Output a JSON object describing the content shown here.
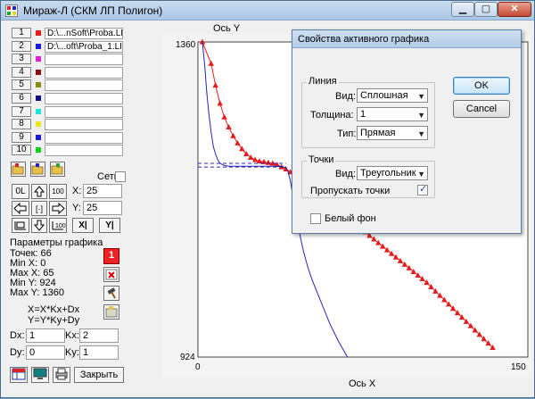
{
  "window": {
    "title": "Мираж-Л (СКМ ЛП Полигон)",
    "controls": {
      "minimize": "▁",
      "maximize": "▢",
      "close": "✕"
    }
  },
  "file_slots": [
    {
      "num": "1",
      "color": "#e81a1a",
      "file": "D:\\...nSoft\\Proba.LIN"
    },
    {
      "num": "2",
      "color": "#1a1ad4",
      "file": "D:\\...oft\\Proba_1.LIN"
    },
    {
      "num": "3",
      "color": "#e020e0",
      "file": ""
    },
    {
      "num": "4",
      "color": "#8a1010",
      "file": ""
    },
    {
      "num": "5",
      "color": "#8a8a10",
      "file": ""
    },
    {
      "num": "6",
      "color": "#10108a",
      "file": ""
    },
    {
      "num": "7",
      "color": "#20e0e0",
      "file": ""
    },
    {
      "num": "8",
      "color": "#e8e820",
      "file": ""
    },
    {
      "num": "9",
      "color": "#1a1ad4",
      "file": ""
    },
    {
      "num": "10",
      "color": "#18d018",
      "file": ""
    }
  ],
  "grid": {
    "label": "Сетка",
    "checked": false
  },
  "nav": {
    "zoom_reset_label": "0L",
    "zoom_100_label": "100",
    "center_label": "[·]",
    "x_label": "X:",
    "x_value": "25",
    "y_label": "Y:",
    "y_value": "25",
    "axis_x_btn": "X|",
    "axis_y_btn": "Y|"
  },
  "params": {
    "title": "Параметры графика",
    "points": "Точек: 66",
    "min_x": "Min X: 0",
    "max_x": "Max X: 65",
    "min_y": "Min Y: 924",
    "max_y": "Max Y: 1360",
    "active_num": "1",
    "formula_x": "X=X*Kx+Dx",
    "formula_y": "Y=Y*Ky+Dy",
    "dx_label": "Dx:",
    "dx_value": "1",
    "dy_label": "Dy:",
    "dy_value": "0",
    "kx_label": "Kx:",
    "kx_value": "2",
    "ky_label": "Ky:",
    "ky_value": "1"
  },
  "bottom": {
    "close_label": "Закрыть"
  },
  "chart": {
    "y_axis_label": "Ось Y",
    "x_axis_label": "Ось X",
    "y_top_tick": "1360",
    "y_bottom_tick": "924",
    "x_left_tick": "0",
    "x_right_tick": "150"
  },
  "chart_data": {
    "type": "line",
    "xlim": [
      0,
      150
    ],
    "ylim": [
      924,
      1360
    ],
    "xlabel": "Ось X",
    "ylabel": "Ось Y",
    "series": [
      {
        "color": "#e81a1a",
        "marker": "triangle",
        "x": [
          2,
          6,
          8,
          10,
          12,
          14,
          16,
          18,
          20,
          22,
          24,
          26,
          28,
          30,
          32,
          34,
          36,
          38,
          40,
          42,
          44,
          46,
          48,
          50,
          52,
          54,
          56,
          58,
          60,
          62,
          64,
          66,
          68,
          70,
          72,
          74,
          76,
          78,
          80,
          82,
          84,
          86,
          88,
          90,
          92,
          94,
          96,
          98,
          100,
          102,
          104,
          106,
          108,
          110,
          112,
          114,
          116,
          118,
          120,
          122,
          124,
          126,
          128,
          130,
          132,
          134
        ],
        "y": [
          1360,
          1330,
          1300,
          1275,
          1256,
          1242,
          1230,
          1220,
          1212,
          1205,
          1200,
          1197,
          1195,
          1194,
          1193,
          1192,
          1190,
          1187,
          1184,
          1180,
          1176,
          1172,
          1167,
          1162,
          1157,
          1152,
          1147,
          1142,
          1137,
          1132,
          1127,
          1122,
          1117,
          1112,
          1107,
          1102,
          1097,
          1092,
          1087,
          1082,
          1077,
          1072,
          1067,
          1062,
          1057,
          1052,
          1047,
          1042,
          1037,
          1032,
          1027,
          1021,
          1015,
          1009,
          1003,
          997,
          991,
          985,
          979,
          973,
          967,
          961,
          955,
          949,
          943,
          937
        ]
      },
      {
        "color": "#2424b8",
        "marker": "none",
        "x": [
          2,
          3,
          4,
          5,
          6,
          7,
          8,
          9,
          10,
          12,
          14,
          16,
          20,
          25,
          30,
          35,
          38,
          40,
          41,
          42,
          43,
          44,
          46,
          48,
          50,
          52,
          56,
          60,
          64,
          68
        ],
        "y": [
          1360,
          1330,
          1290,
          1260,
          1235,
          1215,
          1205,
          1197,
          1192,
          1189,
          1188,
          1188,
          1188,
          1188,
          1188,
          1188,
          1188,
          1186,
          1180,
          1168,
          1150,
          1128,
          1098,
          1070,
          1048,
          1030,
          1000,
          970,
          945,
          924
        ]
      },
      {
        "color": "#2424b8",
        "marker": "none",
        "style": "dashed",
        "x": [
          0,
          40
        ],
        "y": [
          1192,
          1192
        ]
      },
      {
        "color": "#2424b8",
        "marker": "none",
        "style": "dashed",
        "x": [
          0,
          40
        ],
        "y": [
          1187,
          1187
        ]
      }
    ]
  },
  "dialog": {
    "title": "Свойства активного графика",
    "line_group": "Линия",
    "view_label": "Вид:",
    "view_value": "Сплошная",
    "thickness_label": "Толщина:",
    "thickness_value": "1",
    "type_label": "Тип:",
    "type_value": "Прямая",
    "points_group": "Точки",
    "points_view_label": "Вид:",
    "points_view_value": "Треугольник",
    "skip_points_label": "Пропускать точки",
    "skip_points_checked": true,
    "white_bg_label": "Белый фон",
    "white_bg_checked": false,
    "ok_label": "OK",
    "cancel_label": "Cancel"
  }
}
